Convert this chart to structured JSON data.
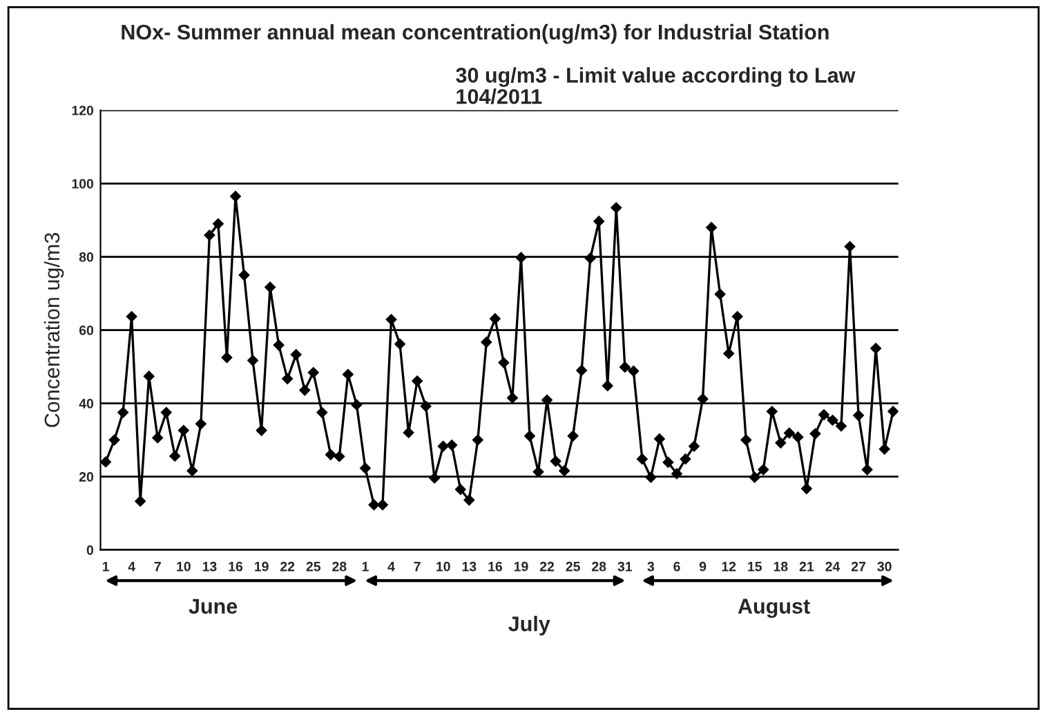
{
  "chart_data": {
    "type": "line",
    "title": "NOx- Summer annual mean concentration(ug/m3) for Industrial Station",
    "subtitle": "30 ug/m3 - Limit value according to Law\n104/2011",
    "ylabel": "Concentration ug/m3",
    "annotations": [
      "June",
      "July",
      "August"
    ],
    "categories": [
      "1",
      null,
      null,
      "4",
      null,
      null,
      "7",
      null,
      null,
      "10",
      null,
      null,
      "13",
      null,
      null,
      "16",
      null,
      null,
      "19",
      null,
      null,
      "22",
      null,
      null,
      "25",
      null,
      null,
      "28",
      null,
      null,
      "1",
      null,
      null,
      "4",
      null,
      null,
      "7",
      null,
      null,
      "10",
      null,
      null,
      "13",
      null,
      null,
      "16",
      null,
      null,
      "19",
      null,
      null,
      "22",
      null,
      null,
      "25",
      null,
      null,
      "28",
      null,
      null,
      "31",
      null,
      null,
      "3",
      null,
      null,
      "6",
      null,
      null,
      "9",
      null,
      null,
      "12",
      null,
      null,
      "15",
      null,
      null,
      "18",
      null,
      null,
      "21",
      null,
      null,
      "24",
      null,
      null,
      "27",
      null,
      null,
      "30",
      null
    ],
    "series": [
      {
        "color": "#000000",
        "values": [
          24,
          30,
          37.5,
          63.7,
          13.3,
          47.4,
          30.6,
          37.5,
          25.6,
          32.6,
          21.6,
          34.4,
          85.9,
          89,
          52.5,
          96.5,
          75,
          51.7,
          32.6,
          71.7,
          55.9,
          46.7,
          53.3,
          43.6,
          48.4,
          37.5,
          26,
          25.5,
          47.9,
          39.6,
          22.3,
          12.3,
          12.3,
          62.9,
          56.2,
          32,
          46.1,
          39.2,
          19.6,
          28.3,
          28.6,
          16.5,
          13.6,
          30,
          56.7,
          63.1,
          51.1,
          41.5,
          79.8,
          31.1,
          21.3,
          40.9,
          24.2,
          21.6,
          31.1,
          49,
          79.6,
          89.7,
          44.8,
          93.4,
          49.9,
          48.8,
          24.8,
          19.8,
          30.3,
          23.9,
          20.8,
          24.8,
          28.3,
          41.2,
          88,
          69.8,
          53.6,
          63.7,
          30,
          19.8,
          21.9,
          37.8,
          29.2,
          31.9,
          30.8,
          16.7,
          31.7,
          36.9,
          35.4,
          33.8,
          82.8,
          36.7,
          21.9,
          55,
          27.5,
          37.8
        ]
      }
    ],
    "ylim": [
      0,
      120
    ],
    "yticks": [
      0,
      20,
      40,
      60,
      80,
      100,
      120
    ],
    "grid": "y",
    "legend": false,
    "marker": "diamond",
    "line_style": "solid"
  }
}
